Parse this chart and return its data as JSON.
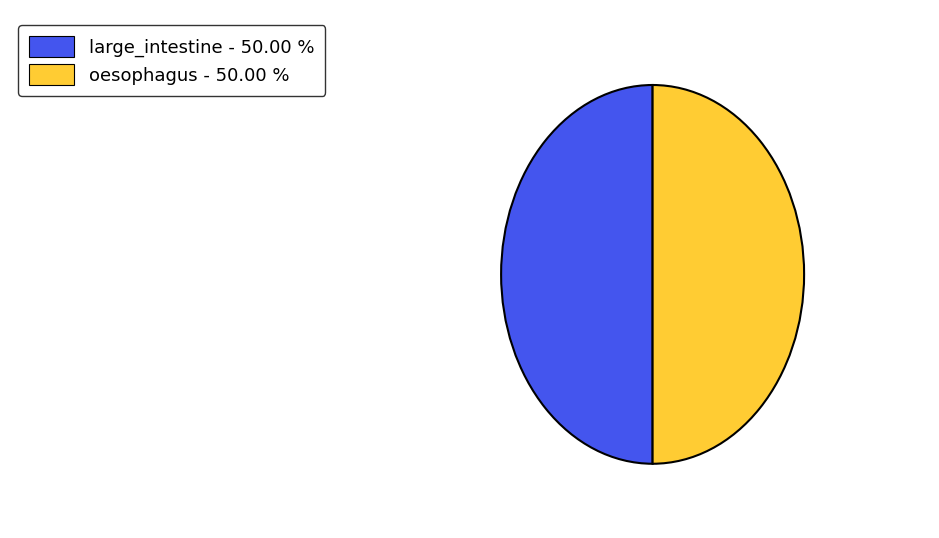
{
  "slices": [
    50.0,
    50.0
  ],
  "labels": [
    "large_intestine",
    "oesophagus"
  ],
  "colors": [
    "#4455ee",
    "#ffcc33"
  ],
  "legend_labels": [
    "large_intestine - 50.00 %",
    "oesophagus - 50.00 %"
  ],
  "background_color": "#ffffff",
  "startangle": 90,
  "figsize": [
    9.39,
    5.38
  ],
  "dpi": 100
}
